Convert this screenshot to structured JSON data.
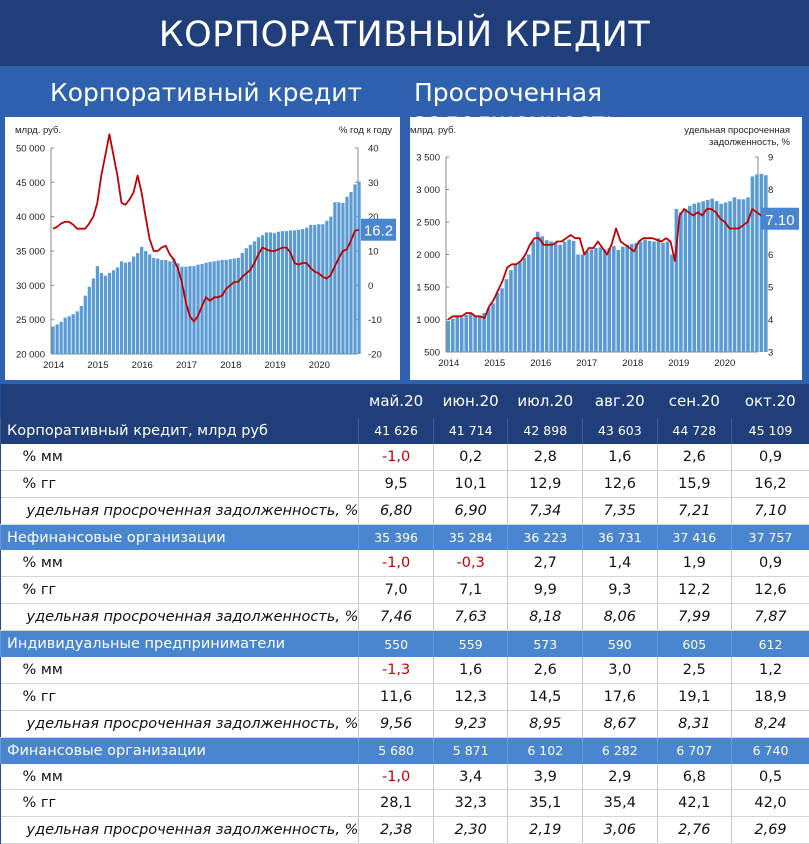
{
  "header": {
    "title": "КОРПОРАТИВНЫЙ КРЕДИТ",
    "left_subtitle": "Корпоративный кредит",
    "right_subtitle": "Просроченная задолженность"
  },
  "chart_data": [
    {
      "type": "bar",
      "title": "Корпоративный кредит",
      "left_unit": "млрд. руб.",
      "right_unit": "% год к году",
      "last_value_label": "16.2",
      "ylim_left": [
        20000,
        50000
      ],
      "ylim_right": [
        -20,
        40
      ],
      "left_ticks": [
        "50 000",
        "45 000",
        "40 000",
        "35 000",
        "30 000",
        "25 000",
        "20 000"
      ],
      "right_ticks": [
        "40",
        "30",
        "20",
        "10",
        "0",
        "-10",
        "-20"
      ],
      "x_ticks": [
        "2014",
        "2015",
        "2016",
        "2017",
        "2018",
        "2019",
        "2020"
      ],
      "series": [
        {
          "axis": "left",
          "kind": "bar",
          "values": [
            24000,
            24300,
            24700,
            25300,
            25500,
            25800,
            26200,
            27000,
            28500,
            29800,
            31000,
            32800,
            31800,
            31400,
            31800,
            32200,
            32600,
            33500,
            33300,
            33400,
            34200,
            34700,
            35600,
            35000,
            34500,
            34000,
            33900,
            33700,
            33700,
            33500,
            33900,
            33200,
            32700,
            32700,
            32800,
            32800,
            33000,
            33100,
            33300,
            33400,
            33500,
            33600,
            33700,
            33700,
            33800,
            33900,
            34000,
            34700,
            35400,
            35900,
            36400,
            37000,
            37300,
            37700,
            37700,
            37600,
            37800,
            37900,
            37900,
            38000,
            38000,
            38100,
            38200,
            38400,
            38800,
            38800,
            38900,
            38900,
            39400,
            40000,
            42100,
            42100,
            42000,
            42900,
            43600,
            44700,
            45100
          ]
        },
        {
          "axis": "right",
          "kind": "line",
          "values": [
            16.5,
            17,
            18,
            18.5,
            18.5,
            17.7,
            16.5,
            16.5,
            16.5,
            18,
            20,
            24,
            32,
            38,
            44,
            38,
            32,
            24,
            23.5,
            25,
            27,
            32,
            27,
            20,
            13.5,
            10,
            10,
            11,
            11.5,
            9,
            7.5,
            5,
            1,
            -5,
            -9,
            -10.5,
            -9,
            -6,
            -3.5,
            -4.5,
            -3.5,
            -3.5,
            -3,
            -1,
            0,
            1,
            1,
            2.5,
            3.5,
            4.5,
            6.5,
            9,
            11,
            10.5,
            10,
            10,
            10.5,
            11,
            11,
            9.5,
            6.5,
            6,
            6.5,
            6.5,
            5,
            4,
            3.5,
            2.5,
            2,
            3,
            5.5,
            8,
            10,
            10.5,
            13,
            15.9,
            16.2
          ]
        }
      ]
    },
    {
      "type": "bar",
      "title": "Просроченная задолженность",
      "left_unit": "млрд. руб.",
      "right_unit_line1": "удельная просроченная",
      "right_unit_line2": "задолженность, %",
      "last_value_label": "7.10",
      "ylim_left": [
        500,
        3500
      ],
      "ylim_right": [
        3,
        9
      ],
      "left_ticks": [
        "3 500",
        "3 000",
        "2 500",
        "2 000",
        "1 500",
        "1 000",
        "500"
      ],
      "right_ticks": [
        "9",
        "8",
        "7",
        "6",
        "5",
        "4",
        "3"
      ],
      "x_ticks": [
        "2014",
        "2015",
        "2016",
        "2017",
        "2018",
        "2019",
        "2020"
      ],
      "series": [
        {
          "axis": "left",
          "kind": "bar",
          "values": [
            980,
            1010,
            1050,
            1030,
            1070,
            1100,
            1060,
            1060,
            1100,
            1180,
            1250,
            1410,
            1480,
            1620,
            1760,
            1840,
            1880,
            1950,
            2000,
            2200,
            2350,
            2280,
            2220,
            2200,
            2180,
            2150,
            2200,
            2230,
            2210,
            2000,
            2000,
            2050,
            2080,
            2100,
            2110,
            2080,
            2100,
            2130,
            2070,
            2120,
            2150,
            2160,
            2180,
            2200,
            2230,
            2210,
            2200,
            2250,
            2180,
            2200,
            2000,
            2700,
            2650,
            2700,
            2750,
            2780,
            2800,
            2820,
            2840,
            2860,
            2820,
            2780,
            2800,
            2820,
            2880,
            2850,
            2850,
            2880,
            3200,
            3230,
            3240,
            3220
          ]
        },
        {
          "axis": "right",
          "kind": "line",
          "values": [
            4,
            4.1,
            4.1,
            4.1,
            4.2,
            4.2,
            4.1,
            4.1,
            4.05,
            4.4,
            4.6,
            4.9,
            5.2,
            5.6,
            5.7,
            5.7,
            5.8,
            6,
            6.3,
            6.5,
            6.5,
            6.3,
            6.3,
            6.3,
            6.4,
            6.4,
            6.5,
            6.6,
            6.5,
            6.5,
            6,
            6.2,
            6.2,
            6.4,
            6.2,
            6,
            6.3,
            6.8,
            6.4,
            6.3,
            6.2,
            6.1,
            6.4,
            6.5,
            6.5,
            6.5,
            6.45,
            6.4,
            6.5,
            6.4,
            5.8,
            7.2,
            7.4,
            7.3,
            7.2,
            7.3,
            7.2,
            7.4,
            7.4,
            7.3,
            7.1,
            7,
            6.8,
            6.8,
            6.8,
            6.9,
            7,
            7.4,
            7.3,
            7.2,
            7.1
          ]
        }
      ]
    }
  ],
  "table": {
    "months": [
      "май.20",
      "июн.20",
      "июл.20",
      "авг.20",
      "сен.20",
      "окт.20"
    ],
    "groups": [
      {
        "label": "Корпоративный кредит, млрд руб",
        "values": [
          "41 626",
          "41 714",
          "42 898",
          "43 603",
          "44 728",
          "45 109"
        ],
        "style": "dark",
        "rows": [
          {
            "label": "% мм",
            "values": [
              "-1,0",
              "0,2",
              "2,8",
              "1,6",
              "2,6",
              "0,9"
            ]
          },
          {
            "label": "% гг",
            "values": [
              "9,5",
              "10,1",
              "12,9",
              "12,6",
              "15,9",
              "16,2"
            ]
          },
          {
            "label": "удельная просроченная задолженность, %",
            "italic": true,
            "values": [
              "6,80",
              "6,90",
              "7,34",
              "7,35",
              "7,21",
              "7,10"
            ]
          }
        ]
      },
      {
        "label": "Нефинансовые организации",
        "values": [
          "35 396",
          "35 284",
          "36 223",
          "36 731",
          "37 416",
          "37 757"
        ],
        "style": "light",
        "rows": [
          {
            "label": "% мм",
            "values": [
              "-1,0",
              "-0,3",
              "2,7",
              "1,4",
              "1,9",
              "0,9"
            ]
          },
          {
            "label": "% гг",
            "values": [
              "7,0",
              "7,1",
              "9,9",
              "9,3",
              "12,2",
              "12,6"
            ]
          },
          {
            "label": "удельная просроченная задолженность, %",
            "italic": true,
            "values": [
              "7,46",
              "7,63",
              "8,18",
              "8,06",
              "7,99",
              "7,87"
            ]
          }
        ]
      },
      {
        "label": "Индивидуальные предприниматели",
        "values": [
          "550",
          "559",
          "573",
          "590",
          "605",
          "612"
        ],
        "style": "light",
        "rows": [
          {
            "label": "% мм",
            "values": [
              "-1,3",
              "1,6",
              "2,6",
              "3,0",
              "2,5",
              "1,2"
            ]
          },
          {
            "label": "% гг",
            "values": [
              "11,6",
              "12,3",
              "14,5",
              "17,6",
              "19,1",
              "18,9"
            ]
          },
          {
            "label": "удельная просроченная задолженность, %",
            "italic": true,
            "values": [
              "9,56",
              "9,23",
              "8,95",
              "8,67",
              "8,31",
              "8,24"
            ]
          }
        ]
      },
      {
        "label": "Финансовые организации",
        "values": [
          "5 680",
          "5 871",
          "6 102",
          "6 282",
          "6 707",
          "6 740"
        ],
        "style": "light",
        "rows": [
          {
            "label": "% мм",
            "values": [
              "-1,0",
              "3,4",
              "3,9",
              "2,9",
              "6,8",
              "0,5"
            ]
          },
          {
            "label": "% гг",
            "values": [
              "28,1",
              "32,3",
              "35,1",
              "35,4",
              "42,1",
              "42,0"
            ]
          },
          {
            "label": "удельная просроченная задолженность, %",
            "italic": true,
            "values": [
              "2,38",
              "2,30",
              "2,19",
              "3,06",
              "2,76",
              "2,69"
            ]
          }
        ]
      }
    ]
  },
  "colors": {
    "bar": "#5b9bd5",
    "line": "#c00000",
    "header": "#203f7a",
    "group_light": "#4a86cf",
    "negative": "#c00000"
  }
}
